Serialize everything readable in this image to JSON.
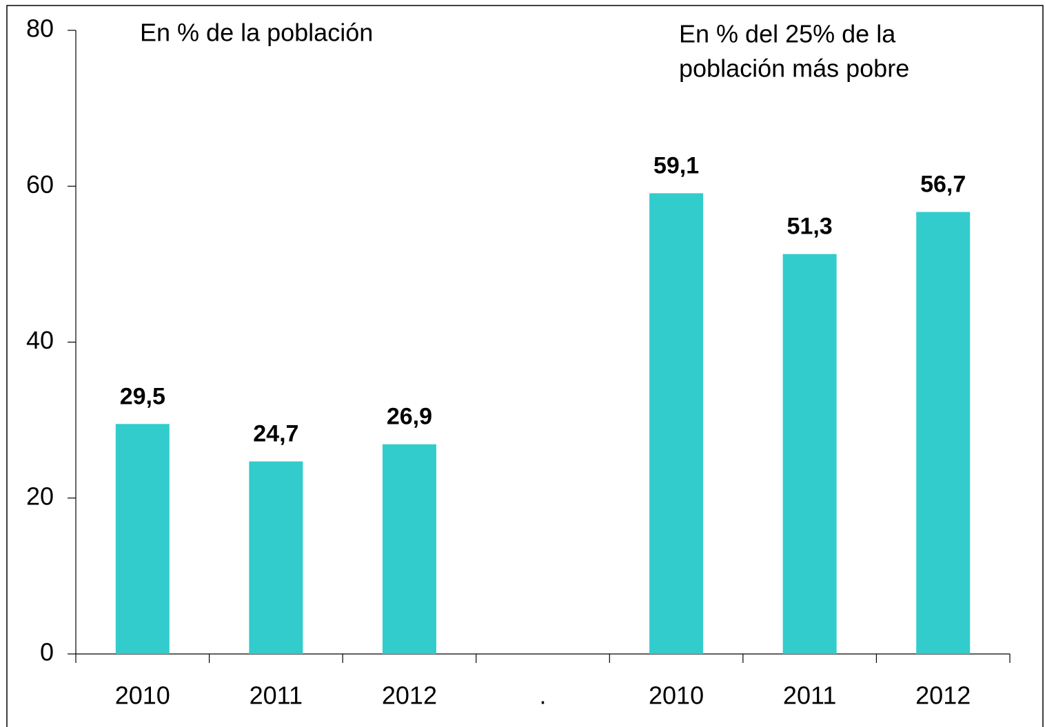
{
  "chart_data": {
    "type": "bar",
    "categories": [
      "2010",
      "2011",
      "2012",
      ".",
      "2010",
      "2011",
      "2012"
    ],
    "values": [
      29.5,
      24.7,
      26.9,
      null,
      59.1,
      51.3,
      56.7
    ],
    "value_labels": [
      "29,5",
      "24,7",
      "26,9",
      null,
      "59,1",
      "51,3",
      "56,7"
    ],
    "color": "#33cccc",
    "ylim": [
      0,
      80
    ],
    "yticks": [
      0,
      20,
      40,
      60,
      80
    ],
    "grid": false,
    "annotations": [
      {
        "lines": [
          "En % de la población"
        ]
      },
      {
        "lines": [
          "En % del 25% de la",
          "población más pobre"
        ]
      }
    ]
  }
}
